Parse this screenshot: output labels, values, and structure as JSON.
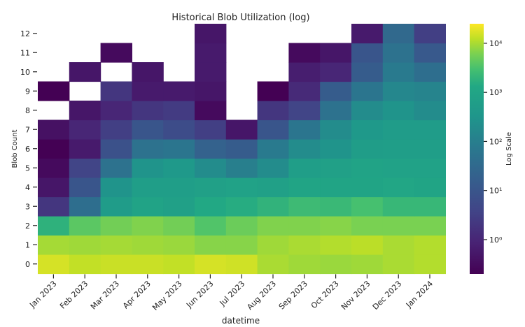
{
  "chart_data": {
    "type": "heatmap",
    "title": "Historical Blob Utilization (log)",
    "xlabel": "datetime",
    "ylabel": "Blob Count",
    "colorbar_label": "Log Scale",
    "colorbar_scale": "log",
    "colorbar_range": [
      0.2,
      25000
    ],
    "colorbar_ticks": [
      {
        "label": "10⁰",
        "value": 1
      },
      {
        "label": "10¹",
        "value": 10
      },
      {
        "label": "10²",
        "value": 100
      },
      {
        "label": "10³",
        "value": 1000
      },
      {
        "label": "10⁴",
        "value": 10000
      }
    ],
    "colormap": "viridis",
    "x_categories": [
      "Jan 2023",
      "Feb 2023",
      "Mar 2023",
      "Apr 2023",
      "May 2023",
      "Jun 2023",
      "Jul 2023",
      "Aug 2023",
      "Sep 2023",
      "Oct 2023",
      "Nov 2023",
      "Dec 2023",
      "Jan 2024"
    ],
    "y_categories": [
      "0",
      "1",
      "2",
      "3",
      "4",
      "5",
      "6",
      "7",
      "8",
      "9",
      "10",
      "11",
      "12"
    ],
    "grid": false,
    "legend": "colorbar-right",
    "values": [
      [
        16000,
        13000,
        14000,
        14000,
        13000,
        16000,
        15000,
        10000,
        9000,
        8500,
        9000,
        10000,
        11000
      ],
      [
        9500,
        9000,
        9500,
        9000,
        8500,
        7000,
        7000,
        9000,
        10000,
        11000,
        12000,
        10000,
        11000
      ],
      [
        1800,
        4000,
        5500,
        6500,
        5500,
        3500,
        5000,
        6500,
        6500,
        7000,
        6000,
        6000,
        6000
      ],
      [
        2,
        40,
        500,
        900,
        700,
        1300,
        1500,
        1900,
        2500,
        2300,
        3000,
        2200,
        2200
      ],
      [
        0.5,
        10,
        300,
        600,
        600,
        700,
        800,
        700,
        1000,
        1000,
        1000,
        1100,
        1000
      ],
      [
        0.3,
        4,
        50,
        300,
        400,
        200,
        100,
        200,
        600,
        700,
        900,
        800,
        800
      ],
      [
        0.2,
        0.6,
        8,
        50,
        60,
        20,
        15,
        80,
        200,
        300,
        550,
        600,
        600
      ],
      [
        0.4,
        1,
        3,
        10,
        6,
        3,
        0.5,
        10,
        60,
        200,
        400,
        500,
        500
      ],
      [
        null,
        0.5,
        1,
        2,
        2.5,
        0.3,
        null,
        2,
        4,
        50,
        200,
        300,
        200
      ],
      [
        0.2,
        null,
        2,
        0.6,
        0.6,
        0.5,
        null,
        0.2,
        1.2,
        15,
        60,
        150,
        130
      ],
      [
        null,
        0.5,
        null,
        0.5,
        null,
        0.6,
        null,
        null,
        0.7,
        1,
        15,
        80,
        40
      ],
      [
        null,
        null,
        0.3,
        null,
        null,
        0.6,
        null,
        null,
        0.3,
        0.5,
        10,
        50,
        12
      ],
      [
        null,
        null,
        null,
        null,
        null,
        0.5,
        null,
        null,
        null,
        null,
        0.6,
        30,
        3
      ]
    ]
  }
}
